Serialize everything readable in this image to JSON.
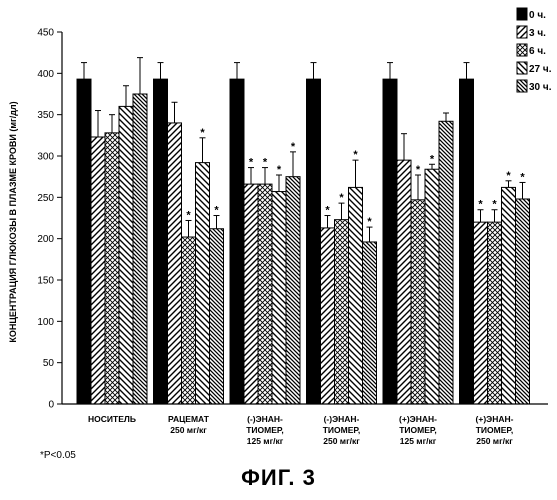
{
  "chart_data": {
    "type": "bar",
    "title": "",
    "ylabel": "КОНЦЕНТРАЦИЯ ГЛЮКОЗЫ В ПЛАЗМЕ КРОВИ (мг/дл)",
    "xlabel": "",
    "ylim": [
      0,
      450
    ],
    "yticks": [
      0,
      50,
      100,
      150,
      200,
      250,
      300,
      350,
      400,
      450
    ],
    "legend_position": "top-right",
    "grid": false,
    "categories": [
      [
        "НОСИТЕЛЬ"
      ],
      [
        "РАЦЕМАТ",
        "250 мг/кг"
      ],
      [
        "(-)ЭНАН-",
        "ТИОМЕР,",
        "125 мг/кг"
      ],
      [
        "(-)ЭНАН-",
        "ТИОМЕР,",
        "250 мг/кг"
      ],
      [
        "(+)ЭНАН-",
        "ТИОМЕР,",
        "125 мг/кг"
      ],
      [
        "(+)ЭНАН-",
        "ТИОМЕР,",
        "250 мг/кг"
      ]
    ],
    "series": [
      {
        "name": "0 ч.",
        "pattern": "solid",
        "values": [
          393,
          393,
          393,
          393,
          393,
          393
        ],
        "errors": [
          20,
          20,
          20,
          20,
          20,
          20
        ],
        "sig": [
          false,
          false,
          false,
          false,
          false,
          false
        ]
      },
      {
        "name": "3 ч.",
        "pattern": "diag-right",
        "values": [
          323,
          340,
          266,
          213,
          295,
          220
        ],
        "errors": [
          32,
          25,
          20,
          15,
          32,
          15
        ],
        "sig": [
          false,
          false,
          true,
          true,
          false,
          true
        ]
      },
      {
        "name": "6 ч.",
        "pattern": "cross-hatch",
        "values": [
          328,
          202,
          266,
          223,
          247,
          220
        ],
        "errors": [
          22,
          20,
          20,
          20,
          30,
          15
        ],
        "sig": [
          false,
          true,
          true,
          true,
          true,
          true
        ]
      },
      {
        "name": "27 ч.",
        "pattern": "diag-left",
        "values": [
          360,
          292,
          257,
          262,
          284,
          262
        ],
        "errors": [
          25,
          30,
          20,
          33,
          6,
          8
        ],
        "sig": [
          false,
          true,
          true,
          true,
          true,
          true
        ]
      },
      {
        "name": "30 ч.",
        "pattern": "dense",
        "values": [
          375,
          212,
          275,
          196,
          342,
          248
        ],
        "errors": [
          44,
          16,
          30,
          18,
          10,
          20
        ],
        "sig": [
          false,
          true,
          true,
          true,
          false,
          true
        ]
      }
    ],
    "sig_marker": "*"
  },
  "footnote": "*P<0.05",
  "figure_title": "ФИГ. 3"
}
